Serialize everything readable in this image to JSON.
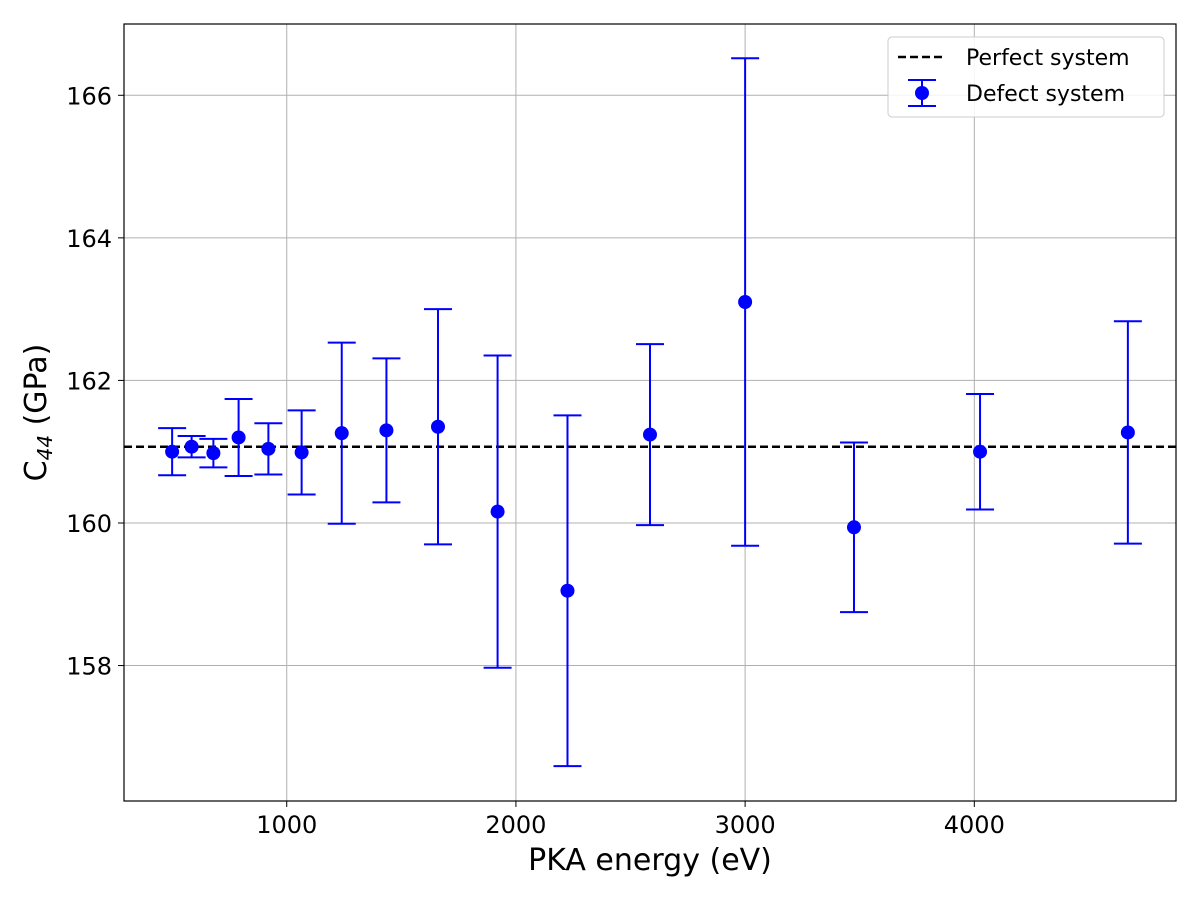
{
  "chart_data": {
    "type": "scatter",
    "xlabel": "PKA energy (eV)",
    "ylabel_main": "C",
    "ylabel_sub": "44",
    "ylabel_unit": " (GPa)",
    "xlim": [
      290,
      4880
    ],
    "ylim": [
      156.1,
      167.0
    ],
    "xticks": [
      1000,
      2000,
      3000,
      4000
    ],
    "yticks": [
      158,
      160,
      162,
      164,
      166
    ],
    "grid": true,
    "legend_position": "top-right",
    "reference_line": {
      "name": "Perfect system",
      "y": 161.07,
      "color": "#000000",
      "style": "dashed"
    },
    "series": [
      {
        "name": "Defect system",
        "color": "#0000ff",
        "points": [
          {
            "x": 500,
            "y": 161.0,
            "err": 0.33
          },
          {
            "x": 585,
            "y": 161.07,
            "err": 0.15
          },
          {
            "x": 680,
            "y": 160.98,
            "err": 0.2
          },
          {
            "x": 790,
            "y": 161.2,
            "err": 0.54
          },
          {
            "x": 920,
            "y": 161.04,
            "err": 0.36
          },
          {
            "x": 1065,
            "y": 160.99,
            "err": 0.59
          },
          {
            "x": 1240,
            "y": 161.26,
            "err": 1.27
          },
          {
            "x": 1435,
            "y": 161.3,
            "err": 1.01
          },
          {
            "x": 1660,
            "y": 161.35,
            "err": 1.65
          },
          {
            "x": 1920,
            "y": 160.16,
            "err": 2.19
          },
          {
            "x": 2225,
            "y": 159.05,
            "err": 2.46
          },
          {
            "x": 2585,
            "y": 161.24,
            "err": 1.27
          },
          {
            "x": 3000,
            "y": 163.1,
            "err": 3.42
          },
          {
            "x": 3475,
            "y": 159.94,
            "err": 1.19
          },
          {
            "x": 4025,
            "y": 161.0,
            "err": 0.81
          },
          {
            "x": 4670,
            "y": 161.27,
            "err": 1.56
          }
        ]
      }
    ]
  }
}
